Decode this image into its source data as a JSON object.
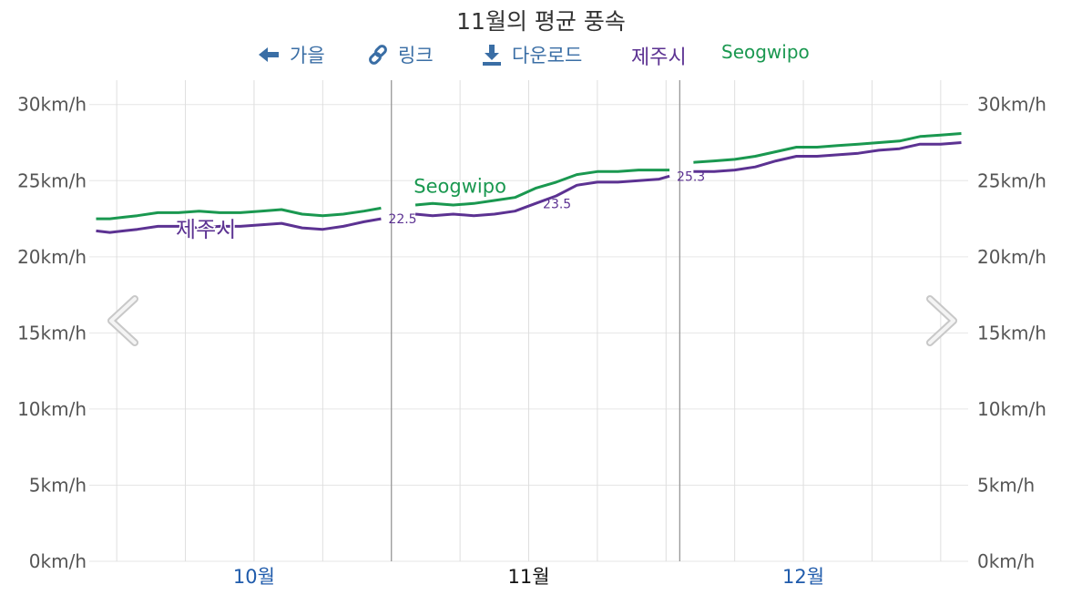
{
  "title": "11월의 평균 풍속",
  "legend": {
    "back_label": "가을",
    "link_label": "링크",
    "download_label": "다운로드",
    "series_jeju": "제주시",
    "series_seogwipo": "Seogwipo"
  },
  "icons": {
    "back": "arrow-left-icon",
    "link": "link-icon",
    "download": "download-icon",
    "prev": "chevron-left-icon",
    "next": "chevron-right-icon"
  },
  "chart_data": {
    "type": "line",
    "yticks": [
      "0km/h",
      "5km/h",
      "10km/h",
      "15km/h",
      "20km/h",
      "25km/h",
      "30km/h"
    ],
    "ylim": [
      0,
      31.6
    ],
    "xlim": [
      0.6,
      13.4
    ],
    "grid": true,
    "months": [
      {
        "label": "10월",
        "x": 3
      },
      {
        "label": "11월",
        "x": 7
      },
      {
        "label": "12월",
        "x": 11
      }
    ],
    "segments": [
      [
        0.6,
        5.0
      ],
      [
        5.0,
        9.2
      ],
      [
        9.2,
        13.4
      ]
    ],
    "series": [
      {
        "name": "제주시",
        "color": "#5c3292",
        "x": [
          0.7,
          0.9,
          1.1,
          1.3,
          1.6,
          1.9,
          2.2,
          2.5,
          2.8,
          3.1,
          3.4,
          3.7,
          4.0,
          4.3,
          4.6,
          4.85,
          5.35,
          5.6,
          5.9,
          6.2,
          6.5,
          6.8,
          7.1,
          7.4,
          7.7,
          8.0,
          8.3,
          8.6,
          8.9,
          9.05,
          9.4,
          9.7,
          10.0,
          10.3,
          10.6,
          10.9,
          11.2,
          11.5,
          11.8,
          12.1,
          12.4,
          12.7,
          13.0,
          13.3
        ],
        "values": [
          21.7,
          21.6,
          21.7,
          21.8,
          22.0,
          22.0,
          21.9,
          22.0,
          22.0,
          22.1,
          22.2,
          21.9,
          21.8,
          22.0,
          22.3,
          22.5,
          22.8,
          22.7,
          22.8,
          22.7,
          22.8,
          23.0,
          23.5,
          24.0,
          24.7,
          24.9,
          24.9,
          25.0,
          25.1,
          25.3,
          25.6,
          25.6,
          25.7,
          25.9,
          26.3,
          26.6,
          26.6,
          26.7,
          26.8,
          27.0,
          27.1,
          27.4,
          27.4,
          27.5
        ]
      },
      {
        "name": "Seogwipo",
        "color": "#1a9850",
        "x": [
          0.7,
          0.9,
          1.1,
          1.3,
          1.6,
          1.9,
          2.2,
          2.5,
          2.8,
          3.1,
          3.4,
          3.7,
          4.0,
          4.3,
          4.6,
          4.85,
          5.35,
          5.6,
          5.9,
          6.2,
          6.5,
          6.8,
          7.1,
          7.4,
          7.7,
          8.0,
          8.3,
          8.6,
          8.9,
          9.05,
          9.4,
          9.7,
          10.0,
          10.3,
          10.6,
          10.9,
          11.2,
          11.5,
          11.8,
          12.1,
          12.4,
          12.7,
          13.0,
          13.3
        ],
        "values": [
          22.5,
          22.5,
          22.6,
          22.7,
          22.9,
          22.9,
          23.0,
          22.9,
          22.9,
          23.0,
          23.1,
          22.8,
          22.7,
          22.8,
          23.0,
          23.2,
          23.4,
          23.5,
          23.4,
          23.5,
          23.7,
          23.9,
          24.5,
          24.9,
          25.4,
          25.6,
          25.6,
          25.7,
          25.7,
          25.7,
          26.2,
          26.3,
          26.4,
          26.6,
          26.9,
          27.2,
          27.2,
          27.3,
          27.4,
          27.5,
          27.6,
          27.9,
          28.0,
          28.1
        ]
      }
    ],
    "data_labels": [
      {
        "x": 4.85,
        "value": 22.5,
        "text": "22.5"
      },
      {
        "x": 7.1,
        "value": 23.5,
        "text": "23.5"
      },
      {
        "x": 9.05,
        "value": 25.3,
        "text": "25.3"
      }
    ],
    "series_labels": [
      {
        "series": 0,
        "x": 2.3,
        "value": 21.3
      },
      {
        "series": 1,
        "x": 6.0,
        "value": 24.2
      }
    ]
  }
}
